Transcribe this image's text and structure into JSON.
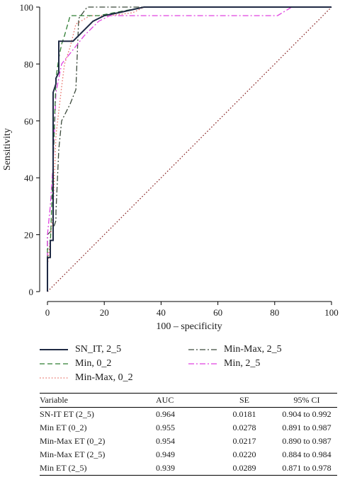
{
  "chart_data": {
    "type": "line",
    "xlabel": "100 – specificity",
    "ylabel": "Sensitivity",
    "xlim": [
      0,
      100
    ],
    "ylim": [
      0,
      100
    ],
    "xticks": [
      0,
      20,
      40,
      60,
      80,
      100
    ],
    "yticks": [
      0,
      20,
      40,
      60,
      80,
      100
    ],
    "grid": false,
    "legend_position": "bottom",
    "series": [
      {
        "name": "SN_IT, 2_5",
        "color": "#1f2a44",
        "dash": "solid",
        "points": [
          [
            0,
            0
          ],
          [
            0,
            12
          ],
          [
            1,
            12
          ],
          [
            1,
            18
          ],
          [
            2,
            18
          ],
          [
            2,
            70
          ],
          [
            3,
            73
          ],
          [
            3,
            75
          ],
          [
            4,
            77
          ],
          [
            4,
            88
          ],
          [
            5,
            88
          ],
          [
            9,
            88
          ],
          [
            12,
            91
          ],
          [
            16,
            95
          ],
          [
            20,
            97
          ],
          [
            25,
            98
          ],
          [
            34,
            100
          ],
          [
            100,
            100
          ]
        ]
      },
      {
        "name": "Min, 0_2",
        "color": "#2e7d32",
        "dash": "dashed",
        "points": [
          [
            0,
            0
          ],
          [
            0,
            15
          ],
          [
            1,
            16
          ],
          [
            2,
            45
          ],
          [
            3,
            75
          ],
          [
            4,
            82
          ],
          [
            5,
            87
          ],
          [
            6,
            90
          ],
          [
            8,
            97
          ],
          [
            18,
            97
          ],
          [
            34,
            100
          ],
          [
            100,
            100
          ]
        ]
      },
      {
        "name": "Min-Max, 0_2",
        "color": "#e8736a",
        "dash": "dotted",
        "points": [
          [
            0,
            0
          ],
          [
            0,
            9
          ],
          [
            2,
            28
          ],
          [
            3,
            55
          ],
          [
            5,
            72
          ],
          [
            6,
            80
          ],
          [
            8,
            86
          ],
          [
            10,
            94
          ],
          [
            15,
            97
          ],
          [
            22,
            97
          ],
          [
            30,
            98
          ],
          [
            34,
            100
          ],
          [
            100,
            100
          ]
        ]
      },
      {
        "name": "Min-Max, 2_5",
        "color": "#3c4a3c",
        "dash": "dashdot",
        "points": [
          [
            0,
            0
          ],
          [
            0,
            20
          ],
          [
            2,
            22
          ],
          [
            3,
            25
          ],
          [
            3,
            28
          ],
          [
            4,
            50
          ],
          [
            5,
            60
          ],
          [
            8,
            66
          ],
          [
            10,
            71
          ],
          [
            11,
            96
          ],
          [
            14,
            100
          ],
          [
            100,
            100
          ]
        ]
      },
      {
        "name": "Min, 2_5",
        "color": "#e040e0",
        "dash": "dashdot",
        "points": [
          [
            0,
            0
          ],
          [
            0,
            20
          ],
          [
            1,
            30
          ],
          [
            2,
            45
          ],
          [
            3,
            70
          ],
          [
            5,
            80
          ],
          [
            9,
            85
          ],
          [
            13,
            90
          ],
          [
            18,
            95
          ],
          [
            22,
            97
          ],
          [
            81,
            97
          ],
          [
            86,
            100
          ],
          [
            100,
            100
          ]
        ]
      },
      {
        "name": "",
        "color": "#8b2b2b",
        "dash": "dotted",
        "points": [
          [
            0,
            0
          ],
          [
            100,
            100
          ]
        ]
      }
    ]
  },
  "legend": [
    {
      "label": "SN_IT, 2_5",
      "color": "#1f2a44",
      "dash": "solid"
    },
    {
      "label": "Min-Max, 2_5",
      "color": "#3c4a3c",
      "dash": "dashdot"
    },
    {
      "label": "Min, 0_2",
      "color": "#2e7d32",
      "dash": "dashed"
    },
    {
      "label": "Min, 2_5",
      "color": "#e040e0",
      "dash": "dashdot"
    },
    {
      "label": "Min-Max, 0_2",
      "color": "#e8736a",
      "dash": "dotted"
    }
  ],
  "table": {
    "headers": [
      "Variable",
      "AUC",
      "SE",
      "95% CI"
    ],
    "rows": [
      [
        "SN-IT ET (2_5)",
        "0.964",
        "0.0181",
        "0.904 to 0.992"
      ],
      [
        "Min ET (0_2)",
        "0.955",
        "0.0278",
        "0.891 to 0.987"
      ],
      [
        "Min-Max ET (0_2)",
        "0.954",
        "0.0217",
        "0.890 to 0.987"
      ],
      [
        "Min-Max ET (2_5)",
        "0.949",
        "0.0220",
        "0.884 to 0.984"
      ],
      [
        "Min ET (2_5)",
        "0.939",
        "0.0289",
        "0.871 to 0.978"
      ]
    ]
  }
}
